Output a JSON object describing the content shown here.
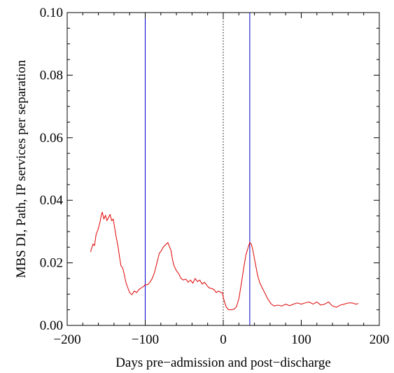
{
  "chart_data": {
    "type": "line",
    "title": "",
    "xlabel": "Days pre−admission and post−discharge",
    "ylabel": "MBS DI, Path, IP services per separation",
    "xlim": [
      -200,
      200
    ],
    "ylim": [
      0.0,
      0.1
    ],
    "x_ticks": [
      -200,
      -100,
      0,
      100,
      200
    ],
    "x_tick_labels": [
      "−200",
      "−100",
      "0",
      "100",
      "200"
    ],
    "y_ticks": [
      0.0,
      0.02,
      0.04,
      0.06,
      0.08,
      0.1
    ],
    "y_tick_labels": [
      "0.00",
      "0.02",
      "0.04",
      "0.06",
      "0.08",
      "0.10"
    ],
    "grid": false,
    "vertical_lines": [
      {
        "x": -100,
        "style": "solid",
        "color": "#0000cc"
      },
      {
        "x": 0,
        "style": "dotted",
        "color": "#000000"
      },
      {
        "x": 34,
        "style": "solid",
        "color": "#0000cc"
      }
    ],
    "series": [
      {
        "color": "#e00000",
        "points": [
          [
            -170,
            0.0235
          ],
          [
            -167,
            0.026
          ],
          [
            -165,
            0.0255
          ],
          [
            -163,
            0.029
          ],
          [
            -160,
            0.031
          ],
          [
            -158,
            0.033
          ],
          [
            -156,
            0.0355
          ],
          [
            -155,
            0.0362
          ],
          [
            -153,
            0.034
          ],
          [
            -151,
            0.0352
          ],
          [
            -149,
            0.0335
          ],
          [
            -147,
            0.0345
          ],
          [
            -145,
            0.0355
          ],
          [
            -143,
            0.0335
          ],
          [
            -141,
            0.034
          ],
          [
            -139,
            0.031
          ],
          [
            -137,
            0.028
          ],
          [
            -135,
            0.0255
          ],
          [
            -133,
            0.022
          ],
          [
            -131,
            0.019
          ],
          [
            -129,
            0.0185
          ],
          [
            -127,
            0.0165
          ],
          [
            -125,
            0.014
          ],
          [
            -123,
            0.0125
          ],
          [
            -120,
            0.0105
          ],
          [
            -117,
            0.0098
          ],
          [
            -114,
            0.011
          ],
          [
            -111,
            0.0105
          ],
          [
            -108,
            0.0115
          ],
          [
            -105,
            0.012
          ],
          [
            -102,
            0.0125
          ],
          [
            -100,
            0.013
          ],
          [
            -97,
            0.013
          ],
          [
            -94,
            0.0138
          ],
          [
            -91,
            0.015
          ],
          [
            -88,
            0.017
          ],
          [
            -85,
            0.02
          ],
          [
            -82,
            0.023
          ],
          [
            -79,
            0.024
          ],
          [
            -77,
            0.025
          ],
          [
            -75,
            0.0255
          ],
          [
            -73,
            0.026
          ],
          [
            -71,
            0.0265
          ],
          [
            -69,
            0.0252
          ],
          [
            -67,
            0.024
          ],
          [
            -65,
            0.021
          ],
          [
            -63,
            0.019
          ],
          [
            -60,
            0.0175
          ],
          [
            -57,
            0.0165
          ],
          [
            -54,
            0.015
          ],
          [
            -51,
            0.0145
          ],
          [
            -48,
            0.0148
          ],
          [
            -45,
            0.0138
          ],
          [
            -42,
            0.0145
          ],
          [
            -39,
            0.0135
          ],
          [
            -36,
            0.015
          ],
          [
            -33,
            0.014
          ],
          [
            -30,
            0.0145
          ],
          [
            -27,
            0.0132
          ],
          [
            -24,
            0.0138
          ],
          [
            -21,
            0.0128
          ],
          [
            -18,
            0.012
          ],
          [
            -15,
            0.0118
          ],
          [
            -12,
            0.0115
          ],
          [
            -9,
            0.0105
          ],
          [
            -6,
            0.011
          ],
          [
            -3,
            0.0105
          ],
          [
            -1,
            0.0105
          ],
          [
            0,
            0.009
          ],
          [
            2,
            0.0072
          ],
          [
            4,
            0.0058
          ],
          [
            7,
            0.005
          ],
          [
            10,
            0.005
          ],
          [
            14,
            0.0052
          ],
          [
            17,
            0.006
          ],
          [
            20,
            0.0085
          ],
          [
            23,
            0.013
          ],
          [
            26,
            0.018
          ],
          [
            29,
            0.0225
          ],
          [
            32,
            0.025
          ],
          [
            34,
            0.0265
          ],
          [
            36,
            0.026
          ],
          [
            38,
            0.024
          ],
          [
            41,
            0.02
          ],
          [
            44,
            0.016
          ],
          [
            47,
            0.0135
          ],
          [
            50,
            0.012
          ],
          [
            53,
            0.0105
          ],
          [
            57,
            0.0085
          ],
          [
            61,
            0.007
          ],
          [
            65,
            0.0062
          ],
          [
            70,
            0.0065
          ],
          [
            75,
            0.0062
          ],
          [
            80,
            0.0068
          ],
          [
            85,
            0.0063
          ],
          [
            90,
            0.0068
          ],
          [
            95,
            0.0072
          ],
          [
            100,
            0.0068
          ],
          [
            105,
            0.0072
          ],
          [
            110,
            0.0075
          ],
          [
            115,
            0.0068
          ],
          [
            120,
            0.0075
          ],
          [
            125,
            0.0065
          ],
          [
            130,
            0.0068
          ],
          [
            135,
            0.0075
          ],
          [
            140,
            0.0062
          ],
          [
            145,
            0.0058
          ],
          [
            150,
            0.0065
          ],
          [
            155,
            0.0068
          ],
          [
            160,
            0.0072
          ],
          [
            165,
            0.0072
          ],
          [
            170,
            0.0068
          ],
          [
            173,
            0.007
          ]
        ]
      }
    ]
  }
}
